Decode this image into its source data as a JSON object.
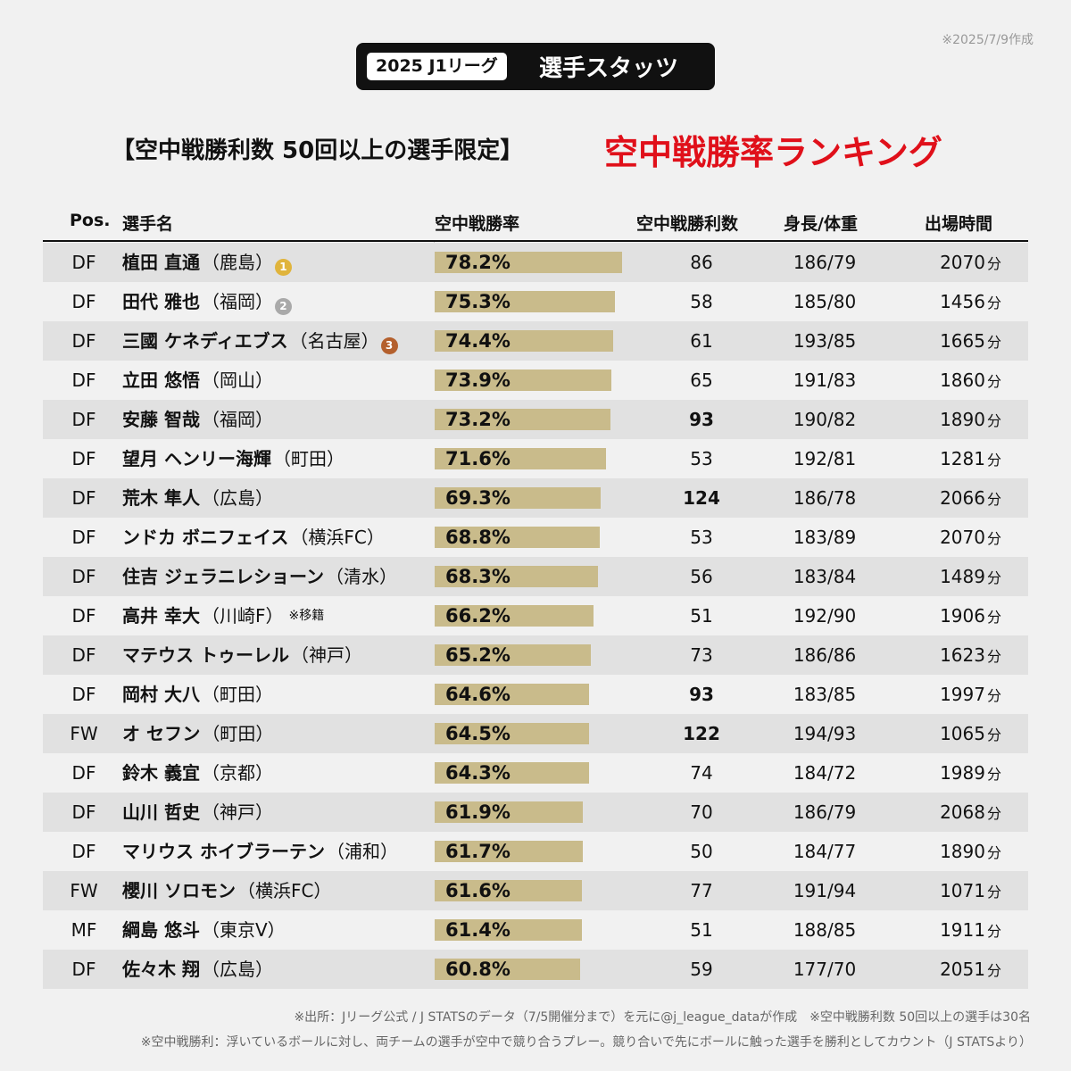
{
  "header": {
    "badge": "2025 J1リーグ",
    "title": "選手スタッツ",
    "date": "※2025/7/9作成",
    "subtitle": "【空中戦勝利数 50回以上の選手限定】",
    "headline": "空中戦勝率ランキング"
  },
  "table": {
    "columns": [
      "Pos.",
      "選手名",
      "空中戦勝率",
      "空中戦勝利数",
      "身長/体重",
      "出場時間"
    ],
    "minute_unit": "分",
    "bar_color": "#c9bb8b",
    "rows": [
      {
        "pos": "DF",
        "name": "植田 直通",
        "team": "（鹿島）",
        "medal": 1,
        "rate": 78.2,
        "rate_label": "78.2%",
        "wins": 86,
        "height_weight": "186/79",
        "minutes": 2070
      },
      {
        "pos": "DF",
        "name": "田代 雅也",
        "team": "（福岡）",
        "medal": 2,
        "rate": 75.3,
        "rate_label": "75.3%",
        "wins": 58,
        "height_weight": "185/80",
        "minutes": 1456
      },
      {
        "pos": "DF",
        "name": "三國 ケネディエブス",
        "team": "（名古屋）",
        "medal": 3,
        "rate": 74.4,
        "rate_label": "74.4%",
        "wins": 61,
        "height_weight": "193/85",
        "minutes": 1665
      },
      {
        "pos": "DF",
        "name": "立田 悠悟",
        "team": "（岡山）",
        "rate": 73.9,
        "rate_label": "73.9%",
        "wins": 65,
        "height_weight": "191/83",
        "minutes": 1860
      },
      {
        "pos": "DF",
        "name": "安藤 智哉",
        "team": "（福岡）",
        "rate": 73.2,
        "rate_label": "73.2%",
        "wins": 93,
        "wins_bold": true,
        "height_weight": "190/82",
        "minutes": 1890
      },
      {
        "pos": "DF",
        "name": "望月 ヘンリー海輝",
        "team": "（町田）",
        "rate": 71.6,
        "rate_label": "71.6%",
        "wins": 53,
        "height_weight": "192/81",
        "minutes": 1281
      },
      {
        "pos": "DF",
        "name": "荒木 隼人",
        "team": "（広島）",
        "rate": 69.3,
        "rate_label": "69.3%",
        "wins": 124,
        "wins_bold": true,
        "height_weight": "186/78",
        "minutes": 2066
      },
      {
        "pos": "DF",
        "name": "ンドカ ボニフェイス",
        "team": "（横浜FC）",
        "rate": 68.8,
        "rate_label": "68.8%",
        "wins": 53,
        "height_weight": "183/89",
        "minutes": 2070
      },
      {
        "pos": "DF",
        "name": "住吉 ジェラニレショーン",
        "team": "（清水）",
        "rate": 68.3,
        "rate_label": "68.3%",
        "wins": 56,
        "height_weight": "183/84",
        "minutes": 1489
      },
      {
        "pos": "DF",
        "name": "高井 幸大",
        "team": "（川崎F）",
        "note": "※移籍",
        "rate": 66.2,
        "rate_label": "66.2%",
        "wins": 51,
        "height_weight": "192/90",
        "minutes": 1906
      },
      {
        "pos": "DF",
        "name": "マテウス トゥーレル",
        "team": "（神戸）",
        "rate": 65.2,
        "rate_label": "65.2%",
        "wins": 73,
        "height_weight": "186/86",
        "minutes": 1623
      },
      {
        "pos": "DF",
        "name": "岡村 大八",
        "team": "（町田）",
        "rate": 64.6,
        "rate_label": "64.6%",
        "wins": 93,
        "wins_bold": true,
        "height_weight": "183/85",
        "minutes": 1997
      },
      {
        "pos": "FW",
        "name": "オ セフン",
        "team": "（町田）",
        "rate": 64.5,
        "rate_label": "64.5%",
        "wins": 122,
        "wins_bold": true,
        "height_weight": "194/93",
        "minutes": 1065
      },
      {
        "pos": "DF",
        "name": "鈴木 義宜",
        "team": "（京都）",
        "rate": 64.3,
        "rate_label": "64.3%",
        "wins": 74,
        "height_weight": "184/72",
        "minutes": 1989
      },
      {
        "pos": "DF",
        "name": "山川 哲史",
        "team": "（神戸）",
        "rate": 61.9,
        "rate_label": "61.9%",
        "wins": 70,
        "height_weight": "186/79",
        "minutes": 2068
      },
      {
        "pos": "DF",
        "name": "マリウス ホイブラーテン",
        "team": "（浦和）",
        "rate": 61.7,
        "rate_label": "61.7%",
        "wins": 50,
        "height_weight": "184/77",
        "minutes": 1890
      },
      {
        "pos": "FW",
        "name": "櫻川 ソロモン",
        "team": "（横浜FC）",
        "rate": 61.6,
        "rate_label": "61.6%",
        "wins": 77,
        "height_weight": "191/94",
        "minutes": 1071
      },
      {
        "pos": "MF",
        "name": "綱島 悠斗",
        "team": "（東京V）",
        "rate": 61.4,
        "rate_label": "61.4%",
        "wins": 51,
        "height_weight": "188/85",
        "minutes": 1911
      },
      {
        "pos": "DF",
        "name": "佐々木 翔",
        "team": "（広島）",
        "rate": 60.8,
        "rate_label": "60.8%",
        "wins": 59,
        "height_weight": "177/70",
        "minutes": 2051
      }
    ]
  },
  "footer": {
    "source": "※出所：Jリーグ公式 / J STATSのデータ（7/5開催分まで）を元に@j_league_dataが作成　※空中戦勝利数 50回以上の選手は30名",
    "definition": "※空中戦勝利：浮いているボールに対し、両チームの選手が空中で競り合うプレー。競り合いで先にボールに触った選手を勝利としてカウント（J STATSより）"
  }
}
